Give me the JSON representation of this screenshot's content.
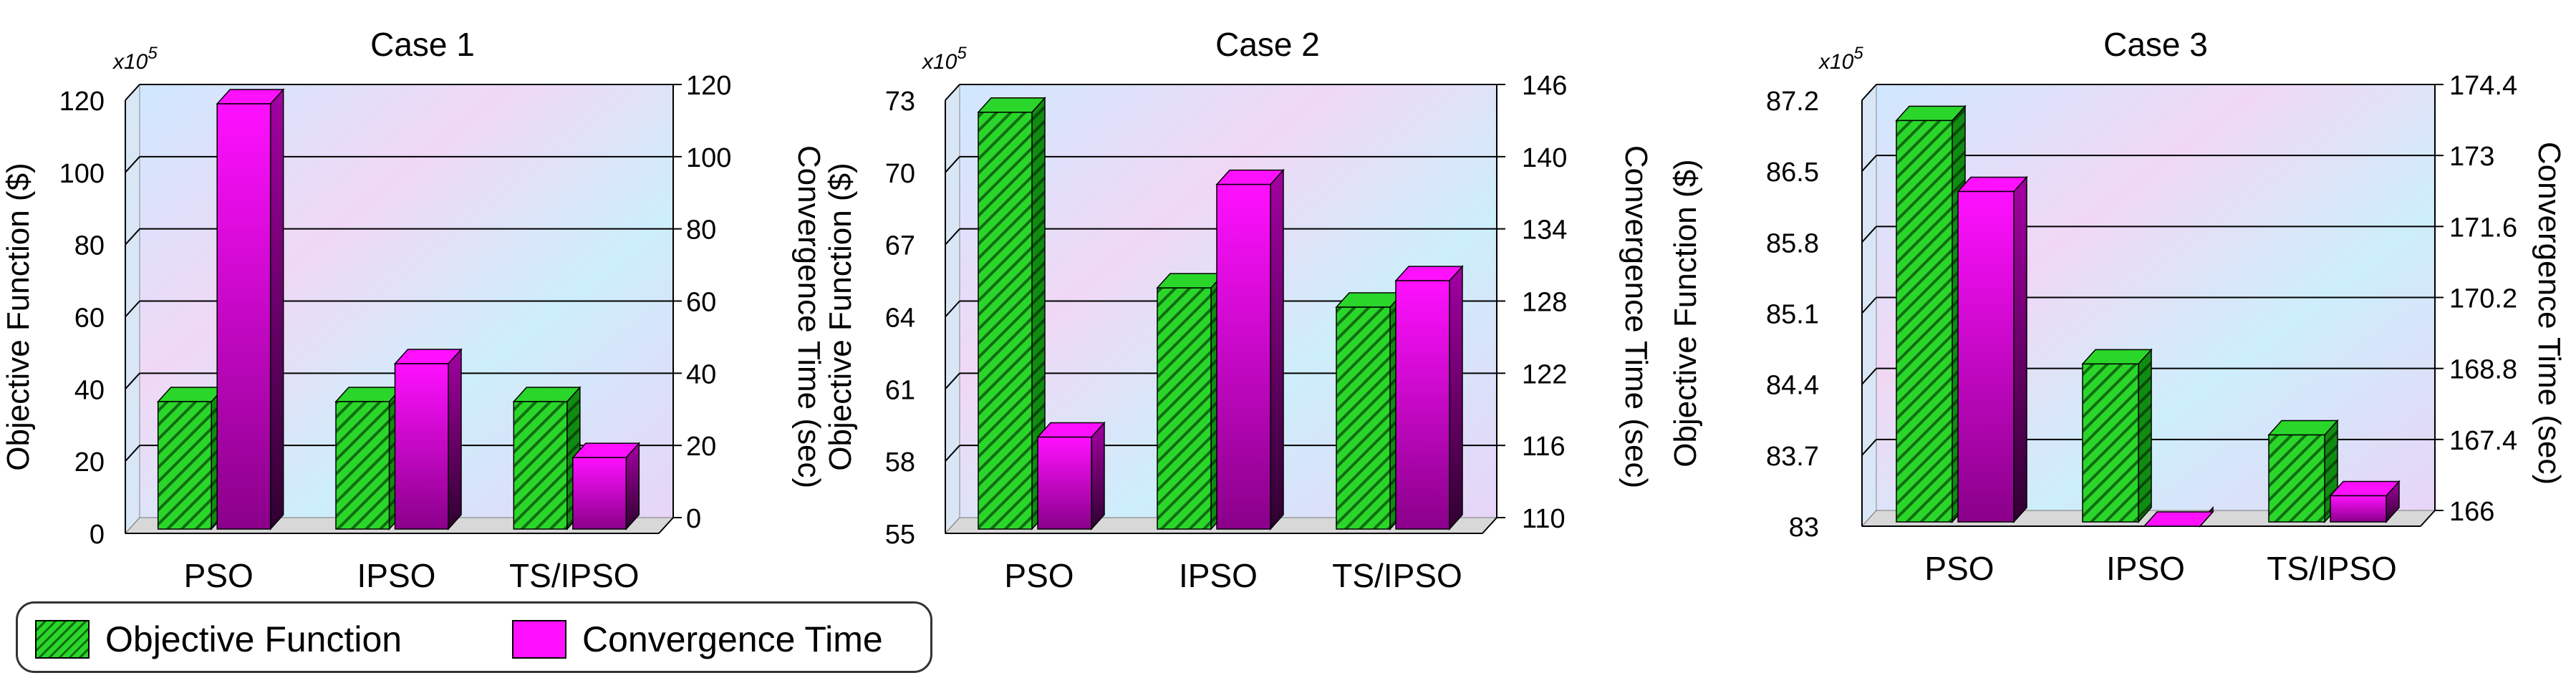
{
  "legend": {
    "objective_label": "Objective Function",
    "convergence_label": "Convergence Time"
  },
  "colors": {
    "objective": "#2bd62b",
    "objective_dark": "#0f6e10",
    "convergence": "#ff10ff",
    "convergence_dark": "#6a006a",
    "axis": "#000000",
    "grid": "#000000"
  },
  "chart_data": [
    {
      "type": "bar",
      "title": "Case 1",
      "exponent_label": "x10",
      "exponent_power": "5",
      "categories": [
        "PSO",
        "IPSO",
        "TS/IPSO"
      ],
      "ylabel_left": "Objective Function ($)",
      "ylabel_right": "Convergence Time (sec)",
      "yticks_left": [
        "0",
        "20",
        "40",
        "60",
        "80",
        "100",
        "120"
      ],
      "yticks_right": [
        "0",
        "20",
        "40",
        "60",
        "80",
        "100",
        "120"
      ],
      "ylim_left": [
        0,
        120
      ],
      "ylim_right": [
        0,
        120
      ],
      "series": [
        {
          "name": "Objective Function",
          "axis": "left",
          "values": [
            36.5,
            36.5,
            36.5
          ]
        },
        {
          "name": "Convergence Time",
          "axis": "right",
          "values": [
            119,
            47,
            21
          ]
        }
      ],
      "grid": true,
      "legend_position": "bottom"
    },
    {
      "type": "bar",
      "title": "Case 2",
      "exponent_label": "x10",
      "exponent_power": "5",
      "categories": [
        "PSO",
        "IPSO",
        "TS/IPSO"
      ],
      "ylabel_left": "Objective Function ($)",
      "ylabel_right": "Convergence Time (sec)",
      "yticks_left": [
        "55",
        "58",
        "61",
        "64",
        "67",
        "70",
        "73"
      ],
      "yticks_right": [
        "110",
        "116",
        "122",
        "128",
        "134",
        "140",
        "146"
      ],
      "ylim_left": [
        55,
        73
      ],
      "ylim_right": [
        110,
        146
      ],
      "series": [
        {
          "name": "Objective Function",
          "axis": "left",
          "values": [
            72.5,
            65.2,
            64.4
          ]
        },
        {
          "name": "Convergence Time",
          "axis": "right",
          "values": [
            118,
            139,
            131
          ]
        }
      ],
      "grid": true,
      "legend_position": "bottom"
    },
    {
      "type": "bar",
      "title": "Case 3",
      "exponent_label": "x10",
      "exponent_power": "5",
      "categories": [
        "PSO",
        "IPSO",
        "TS/IPSO"
      ],
      "ylabel_left": "Objective Function ($)",
      "ylabel_right": "Convergence Time (sec)",
      "yticks_left": [
        "83",
        "83.7",
        "84.4",
        "85.1",
        "85.8",
        "86.5",
        "87.2"
      ],
      "yticks_right": [
        "166",
        "167.4",
        "168.8",
        "170.2",
        "171.6",
        "173",
        "174.4"
      ],
      "ylim_left": [
        83,
        87.2
      ],
      "ylim_right": [
        166,
        174.4
      ],
      "series": [
        {
          "name": "Objective Function",
          "axis": "left",
          "values": [
            87.0,
            84.6,
            83.9
          ]
        },
        {
          "name": "Convergence Time",
          "axis": "right",
          "values": [
            172.6,
            166,
            166.6
          ]
        }
      ],
      "grid": true,
      "legend_position": "bottom"
    }
  ]
}
